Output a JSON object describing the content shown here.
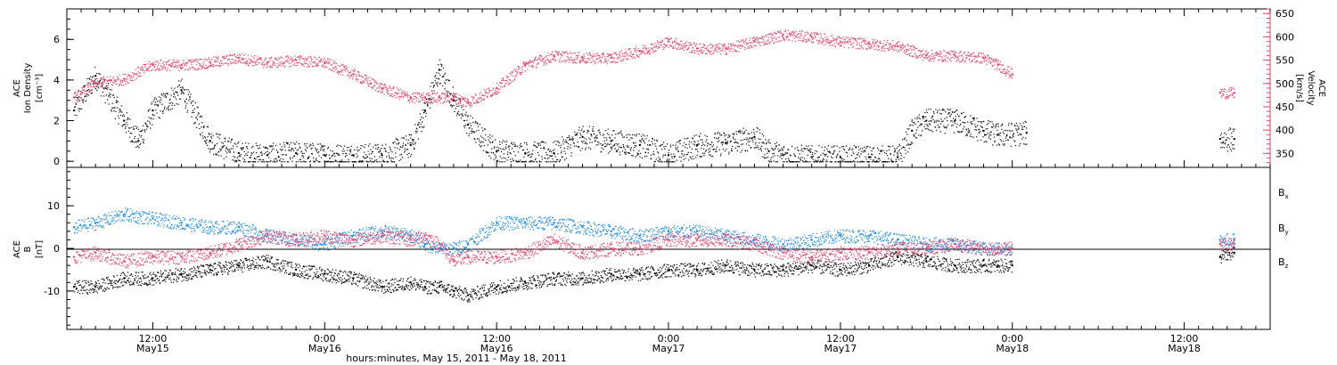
{
  "colors": {
    "density": "#000000",
    "velocity": "#e8416a",
    "bx": "#000000",
    "by": "#1e8be8",
    "bz": "#e8416a"
  },
  "xaxis": {
    "title": "hours:minutes, May 15, 2011 - May 18, 2011",
    "range_hours": [
      6,
      90
    ],
    "ticks": [
      {
        "h": 12,
        "time": "12:00",
        "day": "May15"
      },
      {
        "h": 24,
        "time": "0:00",
        "day": "May16"
      },
      {
        "h": 36,
        "time": "12:00",
        "day": "May16"
      },
      {
        "h": 48,
        "time": "0:00",
        "day": "May17"
      },
      {
        "h": 60,
        "time": "12:00",
        "day": "May17"
      },
      {
        "h": 72,
        "time": "0:00",
        "day": "May18"
      },
      {
        "h": 84,
        "time": "12:00",
        "day": "May18"
      }
    ]
  },
  "chart_data": [
    {
      "type": "scatter",
      "panel": "top",
      "ylabel_left": [
        "ACE",
        "Ion Density",
        "[cm⁻³]"
      ],
      "ylabel_right": [
        "ACE",
        "Velocity",
        "[km/s]"
      ],
      "ylim_left": [
        -0.3,
        7.5
      ],
      "ylim_right": [
        320,
        660
      ],
      "left_ticks": [
        0,
        2,
        4,
        6
      ],
      "right_ticks": [
        350,
        400,
        450,
        500,
        550,
        600,
        650
      ],
      "series": [
        {
          "name": "Ion Density",
          "axis": "left",
          "x": [
            6.5,
            8,
            10,
            11,
            12,
            14,
            16,
            18,
            20,
            22,
            24,
            26,
            28,
            30,
            31,
            32,
            33,
            34,
            36,
            38,
            40,
            42,
            44,
            46,
            48,
            50,
            52,
            54,
            55,
            56,
            58,
            60,
            62,
            64,
            65,
            66,
            68,
            70,
            71,
            73,
            86.5,
            87.5
          ],
          "y": [
            2.5,
            4.2,
            2.0,
            1.0,
            2.5,
            3.5,
            1.0,
            0.4,
            0.3,
            0.4,
            0.3,
            0.3,
            0.3,
            0.8,
            2.5,
            4.5,
            3.0,
            1.8,
            0.5,
            0.4,
            0.4,
            1.2,
            1.0,
            0.8,
            0.3,
            0.8,
            0.9,
            1.2,
            0.5,
            0.3,
            0.2,
            0.2,
            0.2,
            0.2,
            1.5,
            2.0,
            2.0,
            1.5,
            1.3,
            1.4,
            1.1,
            1.1
          ]
        },
        {
          "name": "Velocity",
          "axis": "right",
          "x": [
            6.5,
            8,
            10,
            12,
            14,
            16,
            18,
            20,
            22,
            24,
            26,
            28,
            30,
            31,
            32,
            33,
            34,
            36,
            38,
            40,
            42,
            44,
            46,
            48,
            50,
            52,
            54,
            56,
            58,
            60,
            62,
            64,
            66,
            68,
            70,
            71,
            72,
            86.5,
            87.5
          ],
          "y": [
            470,
            500,
            510,
            540,
            540,
            545,
            555,
            545,
            550,
            545,
            520,
            490,
            470,
            470,
            470,
            470,
            460,
            490,
            540,
            560,
            555,
            555,
            570,
            590,
            575,
            575,
            590,
            605,
            600,
            590,
            585,
            580,
            560,
            560,
            555,
            540,
            520,
            480,
            480
          ]
        }
      ]
    },
    {
      "type": "scatter",
      "panel": "bottom",
      "ylabel_left": [
        "ACE",
        "B",
        "[nT]"
      ],
      "ylim": [
        -19,
        19
      ],
      "yticks": [
        -10,
        0,
        10
      ],
      "legend": [
        {
          "key": "bx",
          "base": "B",
          "sub": "x"
        },
        {
          "key": "by",
          "base": "B",
          "sub": "y"
        },
        {
          "key": "bz",
          "base": "B",
          "sub": "z"
        }
      ],
      "series": [
        {
          "key": "bx",
          "x": [
            6.5,
            8,
            10,
            12,
            14,
            16,
            18,
            20,
            22,
            24,
            26,
            28,
            30,
            31,
            32,
            33,
            34,
            36,
            38,
            40,
            42,
            44,
            46,
            48,
            50,
            52,
            54,
            56,
            58,
            60,
            62,
            64,
            66,
            68,
            70,
            71,
            72,
            86.5,
            87.5
          ],
          "y": [
            -9,
            -9,
            -7,
            -7,
            -6,
            -5,
            -4,
            -3,
            -5,
            -6,
            -7,
            -9,
            -8,
            -9,
            -9,
            -10,
            -11,
            -9,
            -8,
            -7,
            -7,
            -6,
            -6,
            -5,
            -5,
            -4,
            -5,
            -5,
            -4,
            -5,
            -4,
            -2,
            -3,
            -4,
            -4,
            -4,
            -4,
            -2,
            -1
          ]
        },
        {
          "key": "by",
          "x": [
            6.5,
            8,
            10,
            12,
            14,
            16,
            18,
            20,
            22,
            24,
            26,
            28,
            30,
            31,
            32,
            33,
            34,
            36,
            38,
            40,
            42,
            44,
            46,
            48,
            50,
            52,
            54,
            56,
            58,
            60,
            62,
            64,
            66,
            68,
            70,
            71,
            72,
            86.5,
            87.5
          ],
          "y": [
            5,
            6,
            8,
            7,
            6,
            5,
            5,
            3,
            2,
            1,
            3,
            4,
            3,
            1,
            0,
            0,
            1,
            6,
            6,
            6,
            5,
            4,
            3,
            4,
            4,
            3,
            2,
            1,
            2,
            3,
            3,
            2,
            1,
            1,
            0,
            0,
            0,
            2,
            2
          ]
        },
        {
          "key": "bz",
          "x": [
            6.5,
            8,
            10,
            12,
            14,
            16,
            18,
            20,
            22,
            24,
            26,
            28,
            30,
            31,
            32,
            33,
            34,
            36,
            38,
            40,
            42,
            44,
            46,
            48,
            50,
            52,
            54,
            56,
            58,
            60,
            62,
            64,
            66,
            68,
            70,
            71,
            72,
            86.5,
            87.5
          ],
          "y": [
            -2,
            -1,
            -3,
            -2,
            -2,
            -1,
            1,
            3,
            2,
            3,
            2,
            3,
            2,
            3,
            1,
            -3,
            -2,
            -2,
            -1,
            2,
            -1,
            0,
            0,
            2,
            2,
            2,
            1,
            -1,
            -2,
            -1,
            -1,
            0,
            0,
            1,
            0,
            0,
            0,
            1,
            1
          ]
        }
      ]
    }
  ]
}
